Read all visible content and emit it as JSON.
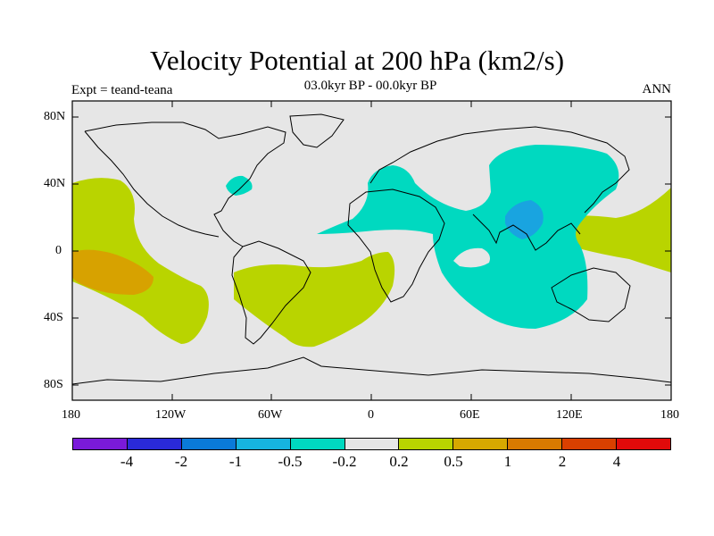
{
  "title": "Velocity Potential at 200 hPa (km2/s)",
  "subtitle": "03.0kyr BP - 00.0kyr BP",
  "experiment": "Expt = teand-teana",
  "season": "ANN",
  "lat_ticks": [
    "80N",
    "40N",
    "0",
    "40S",
    "80S"
  ],
  "lon_ticks": [
    "180",
    "120W",
    "60W",
    "0",
    "60E",
    "120E",
    "180"
  ],
  "colors": {
    "ocean_land_neutral": "#e6e6e6",
    "cyan": "#00d9c0",
    "blue": "#19a4e0",
    "yellow_green": "#b9d400",
    "orange": "#d7a200"
  },
  "colorbar": {
    "colors": [
      "#7a1ad9",
      "#2a2ad9",
      "#0a7ad9",
      "#16b4e0",
      "#00d9c0",
      "#e6e6e6",
      "#b9d400",
      "#d7a800",
      "#d97a00",
      "#d94000",
      "#e10a0a"
    ],
    "labels": [
      "-4",
      "-2",
      "-1",
      "-0.5",
      "-0.2",
      "0.2",
      "0.5",
      "1",
      "2",
      "4"
    ]
  }
}
